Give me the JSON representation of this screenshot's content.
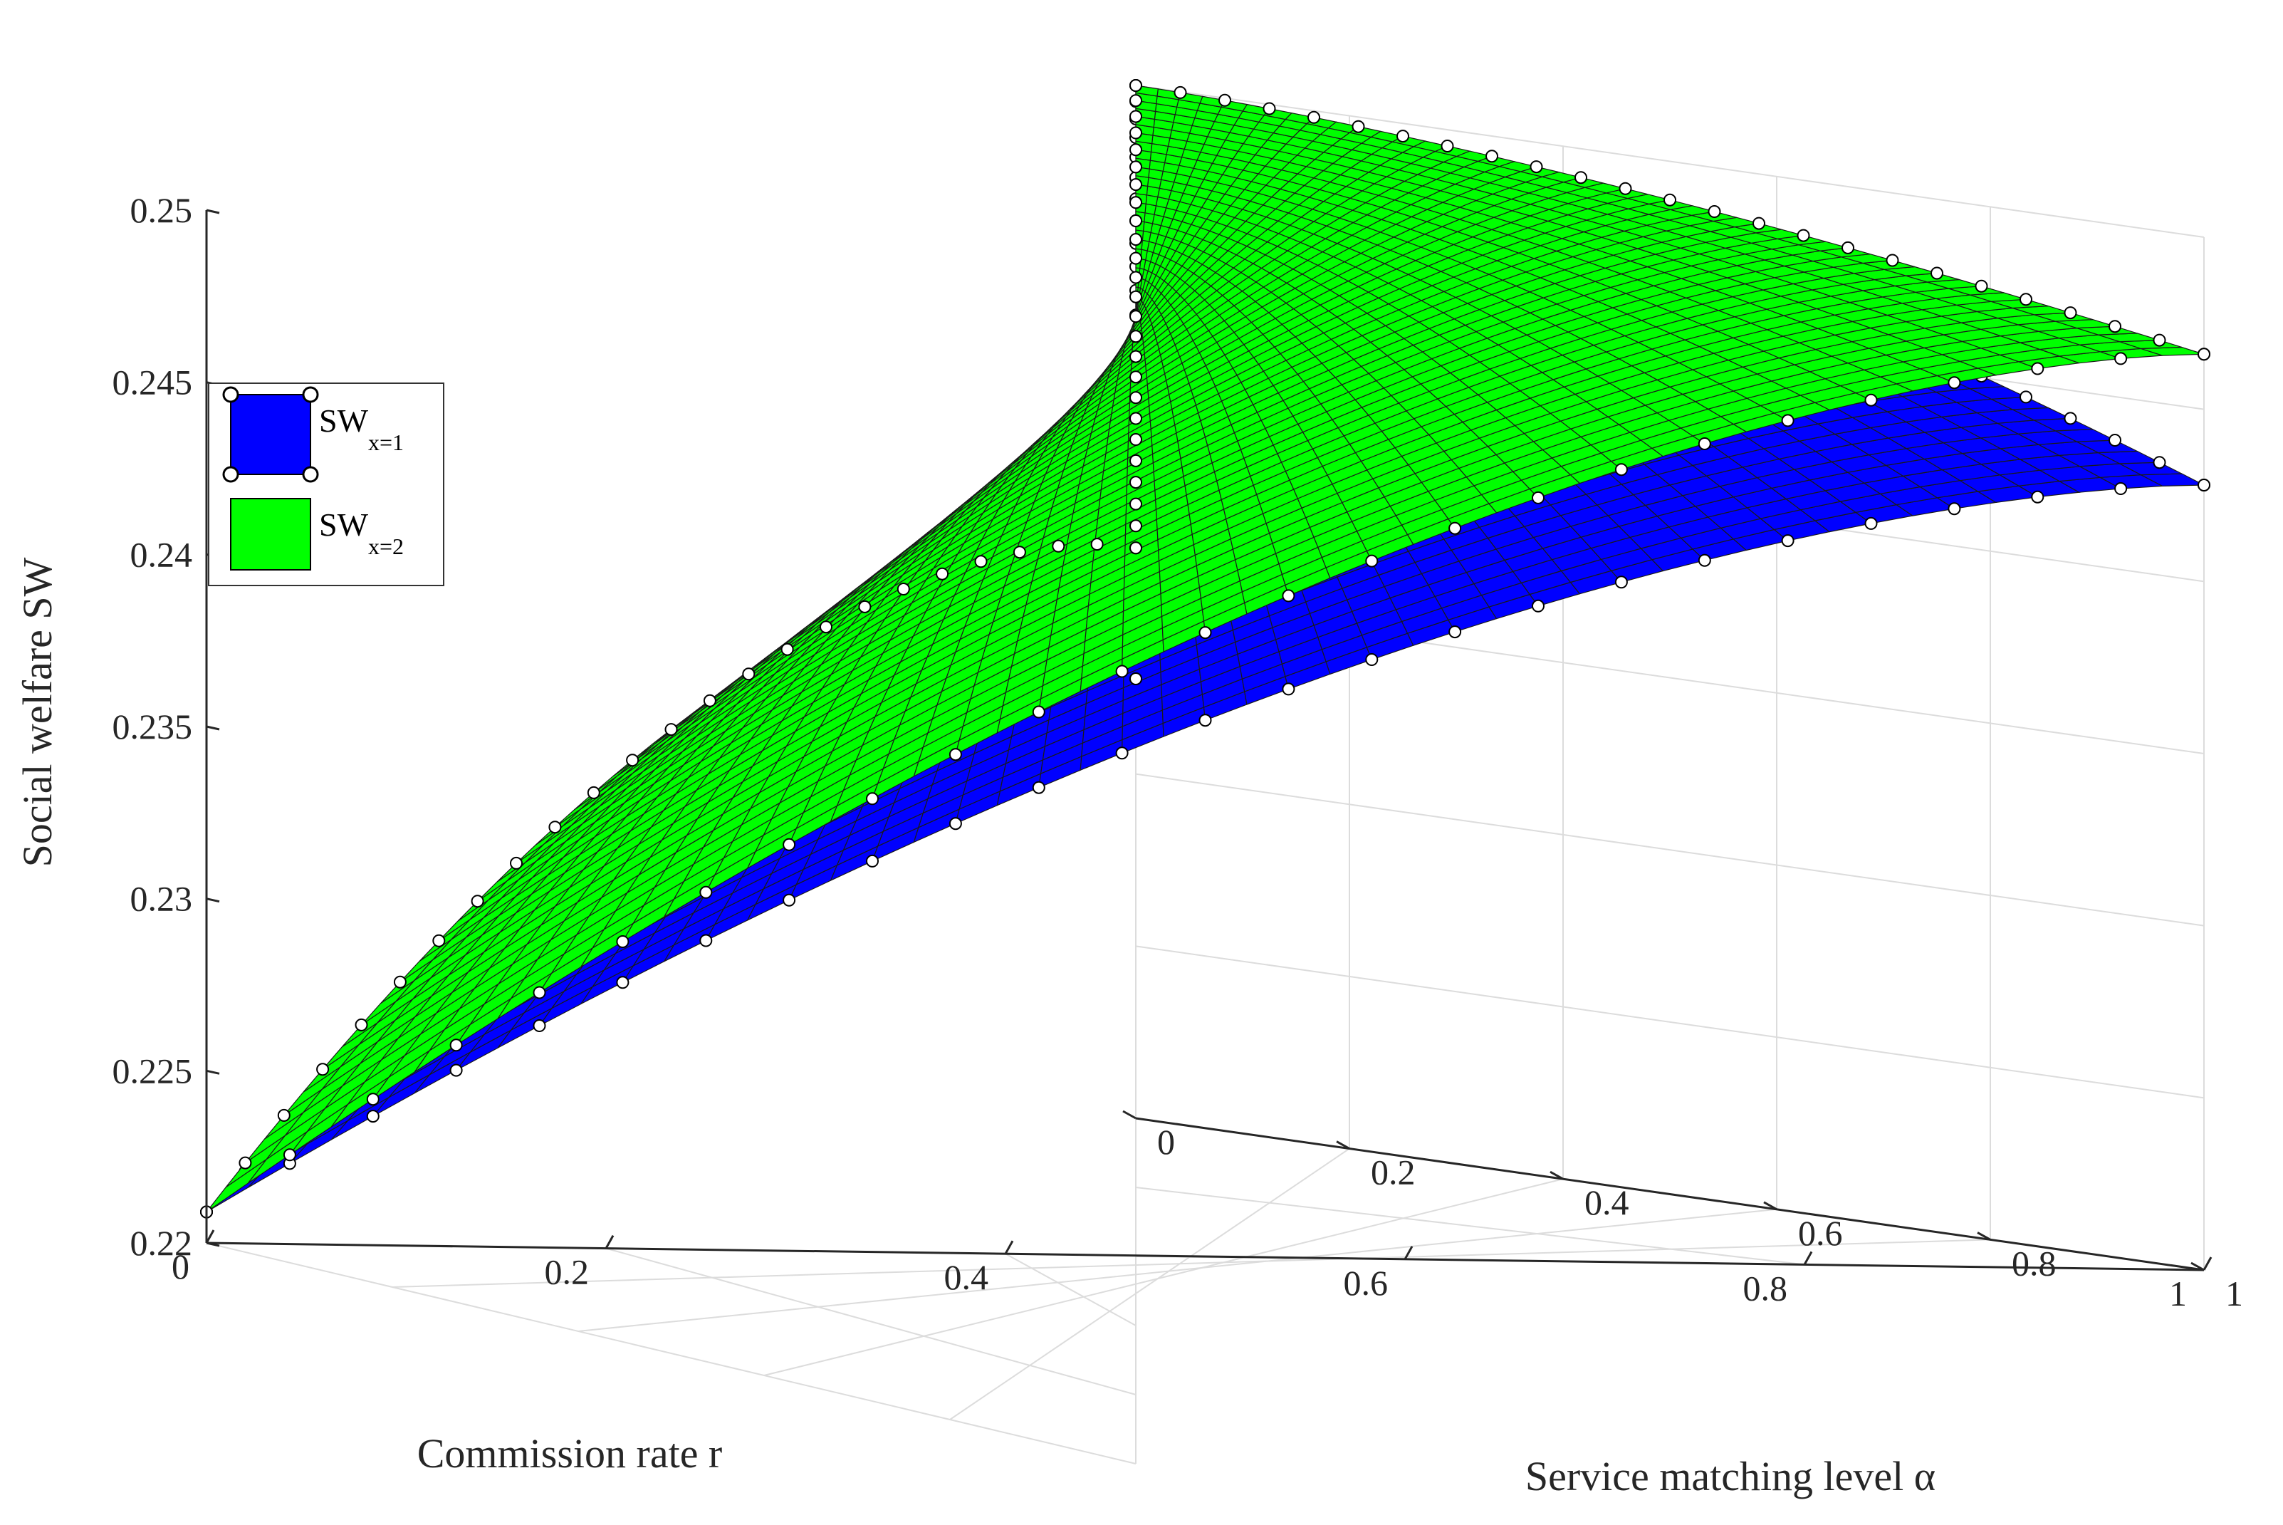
{
  "chart_data": {
    "type": "surface3d",
    "title": "",
    "xlabel": "Commission rate  r",
    "ylabel": "Service matching  level  α",
    "zlabel": "Social welfare  SW",
    "x_ticks": [
      "0",
      "0.2",
      "0.4",
      "0.6",
      "0.8",
      "1"
    ],
    "y_ticks": [
      "0",
      "0.2",
      "0.4",
      "0.6",
      "0.8",
      "1"
    ],
    "z_ticks": [
      "0.22",
      "0.225",
      "0.23",
      "0.235",
      "0.24",
      "0.245",
      "0.25"
    ],
    "xlim": [
      0,
      1
    ],
    "ylim": [
      0,
      1
    ],
    "zlim": [
      0.22,
      0.25
    ],
    "grid": true,
    "legend_position": "upper-left",
    "series": [
      {
        "name": "SW",
        "name_sub": "x=1",
        "color": "#0000ff",
        "corners": {
          "r0_a0": 0.25,
          "r1_a0": 0.2428,
          "r0_a1": 0.2428,
          "r1_a1": 0.2209
        }
      },
      {
        "name": "SW",
        "name_sub": "x=2",
        "color": "#00ff00",
        "corners": {
          "r0_a0": 0.25,
          "r1_a0": 0.2466,
          "r0_a1": 0.2466,
          "r1_a1": 0.2209
        }
      }
    ]
  }
}
